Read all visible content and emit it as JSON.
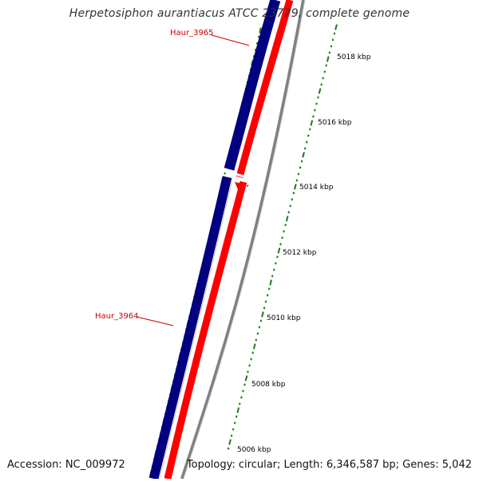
{
  "title": "Herpetosiphon aurantiacus ATCC 23779, complete genome",
  "accession_label": "Accession: NC_009972",
  "summary_label": "Topology: circular; Length: 6,346,587 bp; Genes: 5,042",
  "colors": {
    "forward_strand": "#ff0000",
    "reverse_strand": "#000080",
    "backbone": "#808080",
    "tick": "#1a7a1a",
    "gene_label": "#cc0000"
  },
  "gene_labels": [
    {
      "name": "Haur_3965"
    },
    {
      "name": "Haur_3964"
    }
  ],
  "scale_labels": [
    "5018 kbp",
    "5016 kbp",
    "5014 kbp",
    "5012 kbp",
    "5010 kbp",
    "5008 kbp",
    "5006 kbp"
  ]
}
